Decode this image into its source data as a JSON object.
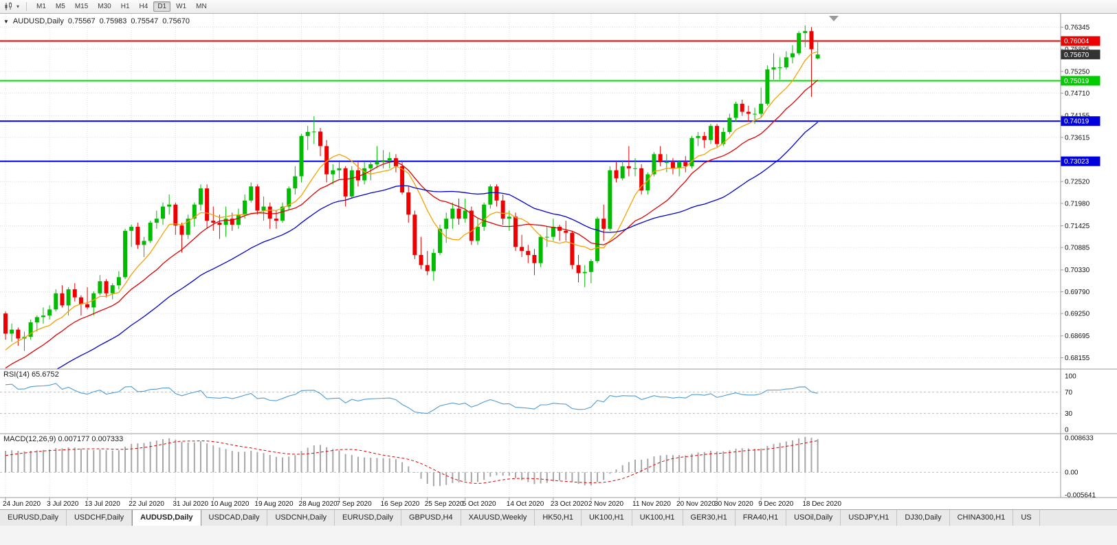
{
  "toolbar": {
    "timeframes": [
      "M1",
      "M5",
      "M15",
      "M30",
      "H1",
      "H4",
      "D1",
      "W1",
      "MN"
    ],
    "active_timeframe": "D1"
  },
  "icons": {
    "toolbar_caret": "▾",
    "header_triangle": "▼"
  },
  "chart_header": {
    "symbol_period": "AUDUSD,Daily",
    "open": "0.75567",
    "high": "0.75983",
    "low": "0.75547",
    "close": "0.75670"
  },
  "price_axis": {
    "grid_labels": [
      "0.76345",
      "0.75805",
      "0.75250",
      "0.74710",
      "0.74155",
      "0.73615",
      "0.72520",
      "0.71980",
      "0.71425",
      "0.70885",
      "0.70330",
      "0.69790",
      "0.69250",
      "0.68695",
      "0.68155"
    ],
    "tags": [
      {
        "label": "0.76004",
        "price": 0.76004,
        "bg": "#ee0000",
        "fg": "#ffffff",
        "name": "resistance-red"
      },
      {
        "label": "0.75670",
        "price": 0.7567,
        "bg": "#333333",
        "fg": "#ffffff",
        "name": "last-price"
      },
      {
        "label": "0.75019",
        "price": 0.75019,
        "bg": "#00cc00",
        "fg": "#ffffff",
        "name": "support-green"
      },
      {
        "label": "0.74019",
        "price": 0.74019,
        "bg": "#0000dd",
        "fg": "#ffffff",
        "name": "support-blue-1"
      },
      {
        "label": "0.73023",
        "price": 0.73023,
        "bg": "#0000dd",
        "fg": "#ffffff",
        "name": "support-blue-2"
      }
    ]
  },
  "levels": [
    {
      "price": 0.76004,
      "color": "#ee0000",
      "width": 2,
      "name": "hline-0-76004"
    },
    {
      "price": 0.75019,
      "color": "#00dd00",
      "width": 2,
      "name": "hline-0-75019"
    },
    {
      "price": 0.74019,
      "color": "#0000dd",
      "width": 2,
      "name": "hline-0-74019"
    },
    {
      "price": 0.73023,
      "color": "#0000dd",
      "width": 2,
      "name": "hline-0-73023"
    }
  ],
  "chart_data": {
    "type": "candlestick",
    "symbol": "AUDUSD",
    "timeframe": "Daily",
    "bull_color": "#00bb00",
    "bear_color": "#ee0000",
    "x_labels": [
      {
        "index": 0,
        "label": "24 Jun 2020"
      },
      {
        "index": 7,
        "label": "3 Jul 2020"
      },
      {
        "index": 13,
        "label": "13 Jul 2020"
      },
      {
        "index": 20,
        "label": "22 Jul 2020"
      },
      {
        "index": 27,
        "label": "31 Jul 2020"
      },
      {
        "index": 33,
        "label": "10 Aug 2020"
      },
      {
        "index": 40,
        "label": "19 Aug 2020"
      },
      {
        "index": 47,
        "label": "28 Aug 2020"
      },
      {
        "index": 53,
        "label": "7 Sep 2020"
      },
      {
        "index": 60,
        "label": "16 Sep 2020"
      },
      {
        "index": 67,
        "label": "25 Sep 2020"
      },
      {
        "index": 73,
        "label": "5 Oct 2020"
      },
      {
        "index": 80,
        "label": "14 Oct 2020"
      },
      {
        "index": 87,
        "label": "23 Oct 2020"
      },
      {
        "index": 93,
        "label": "2 Nov 2020"
      },
      {
        "index": 100,
        "label": "11 Nov 2020"
      },
      {
        "index": 107,
        "label": "20 Nov 2020"
      },
      {
        "index": 113,
        "label": "30 Nov 2020"
      },
      {
        "index": 120,
        "label": "9 Dec 2020"
      },
      {
        "index": 127,
        "label": "18 Dec 2020"
      }
    ],
    "pre_data_closes": [
      0.662,
      0.663,
      0.6625,
      0.664,
      0.665,
      0.6645,
      0.666,
      0.667,
      0.6665,
      0.668,
      0.669,
      0.6685,
      0.67,
      0.671,
      0.6705,
      0.672,
      0.673,
      0.674,
      0.6735,
      0.675,
      0.676,
      0.6755,
      0.677,
      0.678,
      0.679,
      0.68,
      0.682,
      0.6845,
      0.687,
      0.6895
    ],
    "ohlc": [
      [
        0.6925,
        0.693,
        0.686,
        0.6875
      ],
      [
        0.6875,
        0.69,
        0.6855,
        0.6885
      ],
      [
        0.6885,
        0.689,
        0.6845,
        0.6863
      ],
      [
        0.6863,
        0.688,
        0.6832,
        0.6867
      ],
      [
        0.6867,
        0.691,
        0.686,
        0.6903
      ],
      [
        0.6903,
        0.692,
        0.688,
        0.6916
      ],
      [
        0.6916,
        0.694,
        0.69,
        0.692
      ],
      [
        0.692,
        0.6945,
        0.691,
        0.6935
      ],
      [
        0.6935,
        0.6985,
        0.693,
        0.6975
      ],
      [
        0.6975,
        0.6995,
        0.694,
        0.6945
      ],
      [
        0.6945,
        0.699,
        0.692,
        0.6985
      ],
      [
        0.6985,
        0.7,
        0.6955,
        0.6965
      ],
      [
        0.6965,
        0.697,
        0.692,
        0.6948
      ],
      [
        0.6948,
        0.699,
        0.6935,
        0.694
      ],
      [
        0.694,
        0.698,
        0.692,
        0.6975
      ],
      [
        0.6975,
        0.702,
        0.697,
        0.7005
      ],
      [
        0.7005,
        0.701,
        0.6965,
        0.6975
      ],
      [
        0.6975,
        0.7,
        0.696,
        0.6995
      ],
      [
        0.6995,
        0.703,
        0.6985,
        0.7015
      ],
      [
        0.7015,
        0.7135,
        0.701,
        0.713
      ],
      [
        0.713,
        0.7145,
        0.709,
        0.714
      ],
      [
        0.714,
        0.715,
        0.7085,
        0.7095
      ],
      [
        0.7095,
        0.7115,
        0.7065,
        0.7105
      ],
      [
        0.7105,
        0.7155,
        0.71,
        0.715
      ],
      [
        0.715,
        0.718,
        0.7135,
        0.716
      ],
      [
        0.716,
        0.72,
        0.7145,
        0.719
      ],
      [
        0.719,
        0.722,
        0.717,
        0.7195
      ],
      [
        0.7195,
        0.72,
        0.712,
        0.7143
      ],
      [
        0.7143,
        0.715,
        0.7076,
        0.712
      ],
      [
        0.712,
        0.717,
        0.711,
        0.716
      ],
      [
        0.716,
        0.72,
        0.714,
        0.7195
      ],
      [
        0.7195,
        0.7245,
        0.718,
        0.7235
      ],
      [
        0.7235,
        0.7245,
        0.7135,
        0.7155
      ],
      [
        0.7155,
        0.719,
        0.713,
        0.715
      ],
      [
        0.715,
        0.717,
        0.711,
        0.7145
      ],
      [
        0.7145,
        0.719,
        0.7115,
        0.716
      ],
      [
        0.716,
        0.7175,
        0.713,
        0.7145
      ],
      [
        0.7145,
        0.7185,
        0.7135,
        0.717
      ],
      [
        0.717,
        0.722,
        0.716,
        0.7205
      ],
      [
        0.7205,
        0.725,
        0.72,
        0.724
      ],
      [
        0.724,
        0.7245,
        0.717,
        0.718
      ],
      [
        0.718,
        0.7215,
        0.7155,
        0.719
      ],
      [
        0.719,
        0.72,
        0.7135,
        0.716
      ],
      [
        0.716,
        0.718,
        0.7135,
        0.7155
      ],
      [
        0.7155,
        0.72,
        0.715,
        0.719
      ],
      [
        0.719,
        0.724,
        0.718,
        0.7235
      ],
      [
        0.7235,
        0.729,
        0.722,
        0.7265
      ],
      [
        0.7265,
        0.737,
        0.725,
        0.7365
      ],
      [
        0.7365,
        0.739,
        0.733,
        0.7375
      ],
      [
        0.7375,
        0.7414,
        0.7345,
        0.7376
      ],
      [
        0.7376,
        0.7385,
        0.7315,
        0.734
      ],
      [
        0.734,
        0.7355,
        0.725,
        0.727
      ],
      [
        0.727,
        0.7295,
        0.7245,
        0.728
      ],
      [
        0.728,
        0.73,
        0.726,
        0.7285
      ],
      [
        0.7285,
        0.729,
        0.719,
        0.7215
      ],
      [
        0.7215,
        0.729,
        0.721,
        0.728
      ],
      [
        0.728,
        0.73,
        0.724,
        0.7255
      ],
      [
        0.7255,
        0.73,
        0.7245,
        0.7285
      ],
      [
        0.7285,
        0.7305,
        0.7255,
        0.7295
      ],
      [
        0.7295,
        0.734,
        0.7285,
        0.73
      ],
      [
        0.73,
        0.733,
        0.7285,
        0.7305
      ],
      [
        0.7305,
        0.7325,
        0.7285,
        0.731
      ],
      [
        0.731,
        0.732,
        0.7275,
        0.729
      ],
      [
        0.729,
        0.73,
        0.722,
        0.7225
      ],
      [
        0.7225,
        0.724,
        0.715,
        0.717
      ],
      [
        0.717,
        0.718,
        0.706,
        0.707
      ],
      [
        0.707,
        0.7115,
        0.7035,
        0.7045
      ],
      [
        0.7045,
        0.708,
        0.702,
        0.703
      ],
      [
        0.703,
        0.7085,
        0.7006,
        0.7075
      ],
      [
        0.7075,
        0.7145,
        0.707,
        0.7135
      ],
      [
        0.7135,
        0.7175,
        0.71,
        0.716
      ],
      [
        0.716,
        0.72,
        0.7135,
        0.7185
      ],
      [
        0.7185,
        0.721,
        0.7145,
        0.716
      ],
      [
        0.716,
        0.721,
        0.715,
        0.718
      ],
      [
        0.718,
        0.719,
        0.7095,
        0.7105
      ],
      [
        0.7105,
        0.716,
        0.7095,
        0.714
      ],
      [
        0.714,
        0.72,
        0.713,
        0.7195
      ],
      [
        0.7195,
        0.7245,
        0.7185,
        0.724
      ],
      [
        0.724,
        0.7245,
        0.719,
        0.7205
      ],
      [
        0.7205,
        0.722,
        0.7145,
        0.716
      ],
      [
        0.716,
        0.718,
        0.713,
        0.7165
      ],
      [
        0.7165,
        0.7175,
        0.708,
        0.709
      ],
      [
        0.709,
        0.712,
        0.7065,
        0.708
      ],
      [
        0.708,
        0.7095,
        0.705,
        0.707
      ],
      [
        0.707,
        0.7085,
        0.702,
        0.705
      ],
      [
        0.705,
        0.712,
        0.704,
        0.7115
      ],
      [
        0.7115,
        0.714,
        0.709,
        0.7115
      ],
      [
        0.7115,
        0.716,
        0.7105,
        0.714
      ],
      [
        0.714,
        0.7145,
        0.7105,
        0.713
      ],
      [
        0.713,
        0.7155,
        0.7105,
        0.7125
      ],
      [
        0.7125,
        0.713,
        0.7035,
        0.7045
      ],
      [
        0.7045,
        0.707,
        0.7002,
        0.7025
      ],
      [
        0.7025,
        0.7045,
        0.699,
        0.7028
      ],
      [
        0.7028,
        0.706,
        0.7,
        0.7055
      ],
      [
        0.7055,
        0.7165,
        0.705,
        0.716
      ],
      [
        0.716,
        0.7195,
        0.7105,
        0.7135
      ],
      [
        0.7135,
        0.729,
        0.713,
        0.728
      ],
      [
        0.728,
        0.73,
        0.725,
        0.726
      ],
      [
        0.726,
        0.7305,
        0.7255,
        0.729
      ],
      [
        0.729,
        0.734,
        0.7265,
        0.7285
      ],
      [
        0.7285,
        0.731,
        0.7265,
        0.7285
      ],
      [
        0.7285,
        0.7295,
        0.722,
        0.723
      ],
      [
        0.723,
        0.7275,
        0.722,
        0.727
      ],
      [
        0.727,
        0.7325,
        0.7265,
        0.732
      ],
      [
        0.732,
        0.734,
        0.729,
        0.73
      ],
      [
        0.73,
        0.732,
        0.7275,
        0.73
      ],
      [
        0.73,
        0.731,
        0.727,
        0.7285
      ],
      [
        0.7285,
        0.7305,
        0.7265,
        0.73
      ],
      [
        0.73,
        0.7315,
        0.7275,
        0.729
      ],
      [
        0.729,
        0.7365,
        0.7285,
        0.736
      ],
      [
        0.736,
        0.7375,
        0.734,
        0.7365
      ],
      [
        0.7365,
        0.7375,
        0.7335,
        0.7355
      ],
      [
        0.7355,
        0.7395,
        0.7345,
        0.739
      ],
      [
        0.739,
        0.7395,
        0.7338,
        0.7345
      ],
      [
        0.7345,
        0.7385,
        0.734,
        0.7375
      ],
      [
        0.7375,
        0.742,
        0.737,
        0.741
      ],
      [
        0.741,
        0.745,
        0.74,
        0.7445
      ],
      [
        0.7445,
        0.7455,
        0.7415,
        0.7425
      ],
      [
        0.7425,
        0.744,
        0.74,
        0.742
      ],
      [
        0.742,
        0.7435,
        0.7395,
        0.742
      ],
      [
        0.742,
        0.7485,
        0.741,
        0.7445
      ],
      [
        0.7445,
        0.754,
        0.744,
        0.753
      ],
      [
        0.753,
        0.757,
        0.7505,
        0.7535
      ],
      [
        0.7535,
        0.756,
        0.7505,
        0.7535
      ],
      [
        0.7535,
        0.7575,
        0.753,
        0.756
      ],
      [
        0.756,
        0.759,
        0.7545,
        0.757
      ],
      [
        0.757,
        0.7625,
        0.7565,
        0.762
      ],
      [
        0.762,
        0.7639,
        0.7585,
        0.7625
      ],
      [
        0.7625,
        0.7635,
        0.7462,
        0.758
      ],
      [
        0.7557,
        0.7598,
        0.7555,
        0.7567
      ]
    ],
    "overlays": [
      {
        "name": "ma-fast",
        "type": "sma",
        "period": 8,
        "color": "#f7a100"
      },
      {
        "name": "ma-mid",
        "type": "sma",
        "period": 16,
        "color": "#e00000"
      },
      {
        "name": "ma-slow",
        "type": "sma",
        "period": 34,
        "color": "#0000c8"
      }
    ]
  },
  "rsi": {
    "label": "RSI(14) 65.6752",
    "period": 14,
    "color": "#4f9bd5",
    "axis_labels": [
      "100",
      "70",
      "30",
      "0"
    ],
    "level_lines": [
      70,
      30
    ]
  },
  "macd": {
    "label": "MACD(12,26,9) 0.007177 0.007333",
    "fast": 12,
    "slow": 26,
    "signal": 9,
    "max": 0.008633,
    "min": -0.005641,
    "axis_labels": [
      "0.008633",
      "0.00",
      "-0.005641"
    ],
    "hist_color": "#a6a6a6",
    "signal_color": "#e00000"
  },
  "tabs": {
    "active_index": 2,
    "items": [
      "EURUSD,Daily",
      "USDCHF,Daily",
      "AUDUSD,Daily",
      "USDCAD,Daily",
      "USDCNH,Daily",
      "EURUSD,Daily",
      "GBPUSD,H4",
      "XAUUSD,Weekly",
      "HK50,H1",
      "UK100,H1",
      "UK100,H1",
      "GER30,H1",
      "FRA40,H1",
      "USOil,Daily",
      "USDJPY,H1",
      "DJ30,Daily",
      "CHINA300,H1",
      "US"
    ]
  }
}
